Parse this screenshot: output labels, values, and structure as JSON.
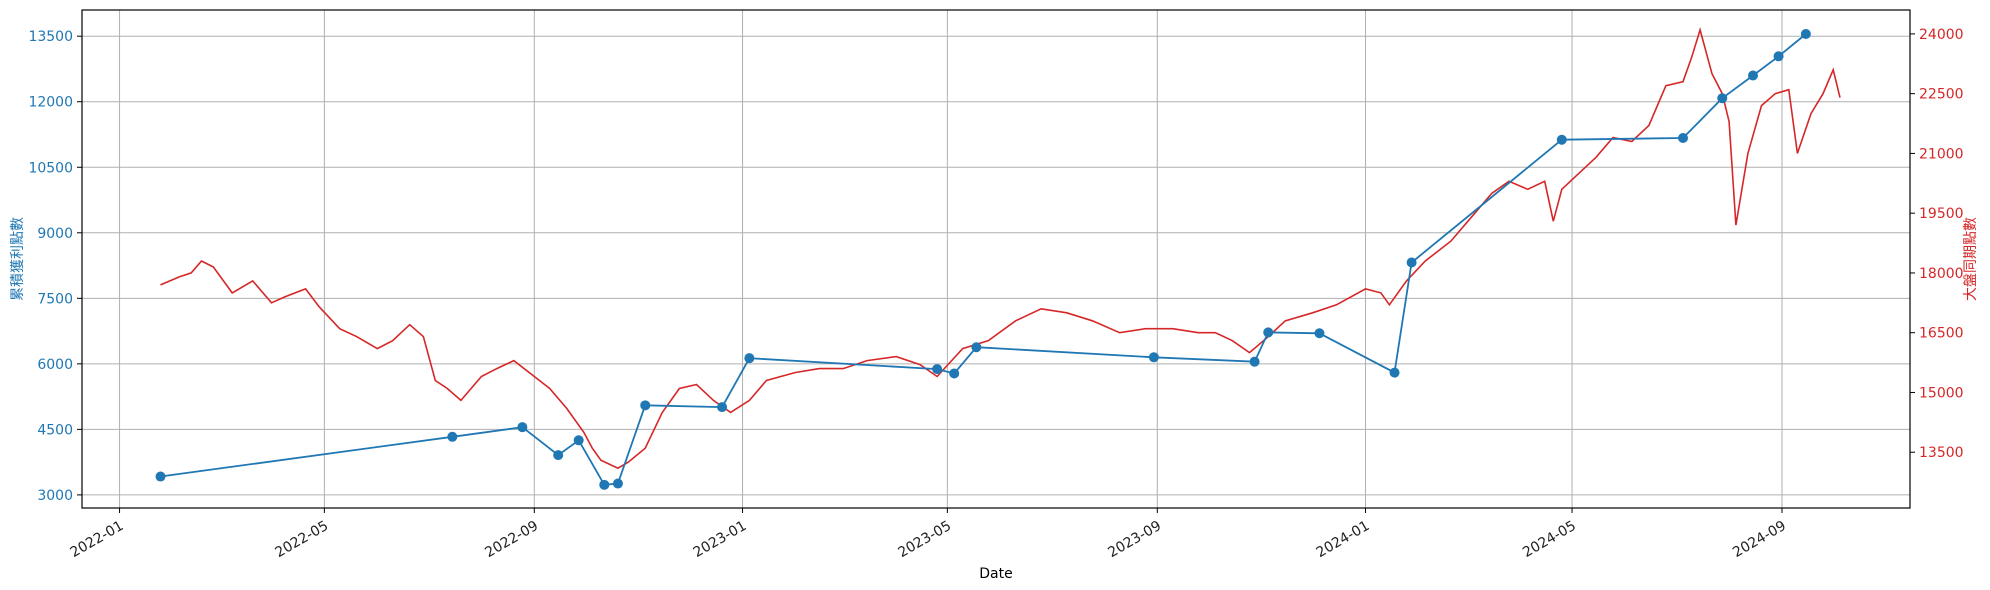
{
  "chart_data": {
    "type": "line",
    "xlabel": "Date",
    "ylabel_left": "累積獲利點數",
    "ylabel_right": "大盤同期點數",
    "y_left_lim": [
      2700,
      14100
    ],
    "y_right_lim": [
      12100,
      24600
    ],
    "x_lim": [
      "2021-12-10",
      "2024-11-15"
    ],
    "grid": true,
    "left_color": "#1f77b4",
    "right_color": "#d62728",
    "x_ticks": [
      "2022-01",
      "2022-05",
      "2022-09",
      "2023-01",
      "2023-05",
      "2023-09",
      "2024-01",
      "2024-05",
      "2024-09"
    ],
    "y_left_ticks": [
      3000,
      4500,
      6000,
      7500,
      9000,
      10500,
      12000,
      13500
    ],
    "y_right_ticks": [
      13500,
      15000,
      16500,
      18000,
      19500,
      21000,
      22500,
      24000
    ],
    "series": [
      {
        "axis": "left",
        "marker": "circle",
        "x": [
          "2022-01-25",
          "2022-07-15",
          "2022-08-25",
          "2022-09-15",
          "2022-09-27",
          "2022-10-12",
          "2022-10-20",
          "2022-11-05",
          "2022-12-20",
          "2023-01-05",
          "2023-04-25",
          "2023-05-05",
          "2023-05-18",
          "2023-08-30",
          "2023-10-28",
          "2023-11-05",
          "2023-12-05",
          "2024-01-18",
          "2024-01-28",
          "2024-04-25",
          "2024-07-05",
          "2024-07-28",
          "2024-08-15",
          "2024-08-30",
          "2024-09-15"
        ],
        "values": [
          3420,
          4330,
          4550,
          3910,
          4250,
          3230,
          3260,
          5050,
          5010,
          6130,
          5880,
          5780,
          6380,
          6150,
          6050,
          6720,
          6700,
          5800,
          8320,
          11130,
          11170,
          12080,
          12600,
          13040,
          13550
        ]
      },
      {
        "axis": "right",
        "marker": "none",
        "x": [
          "2022-01-25",
          "2022-02-05",
          "2022-02-12",
          "2022-02-18",
          "2022-02-25",
          "2022-03-08",
          "2022-03-20",
          "2022-03-31",
          "2022-04-08",
          "2022-04-20",
          "2022-04-28",
          "2022-05-10",
          "2022-05-20",
          "2022-06-01",
          "2022-06-10",
          "2022-06-20",
          "2022-06-28",
          "2022-07-05",
          "2022-07-12",
          "2022-07-20",
          "2022-08-01",
          "2022-08-10",
          "2022-08-20",
          "2022-09-01",
          "2022-09-10",
          "2022-09-20",
          "2022-09-30",
          "2022-10-05",
          "2022-10-10",
          "2022-10-20",
          "2022-10-26",
          "2022-11-05",
          "2022-11-15",
          "2022-11-25",
          "2022-12-05",
          "2022-12-15",
          "2022-12-25",
          "2023-01-05",
          "2023-01-15",
          "2023-02-01",
          "2023-02-15",
          "2023-03-01",
          "2023-03-15",
          "2023-04-01",
          "2023-04-15",
          "2023-04-25",
          "2023-05-10",
          "2023-05-25",
          "2023-06-10",
          "2023-06-25",
          "2023-07-10",
          "2023-07-25",
          "2023-08-10",
          "2023-08-25",
          "2023-09-10",
          "2023-09-25",
          "2023-10-05",
          "2023-10-15",
          "2023-10-25",
          "2023-11-05",
          "2023-11-15",
          "2023-12-01",
          "2023-12-15",
          "2024-01-01",
          "2024-01-10",
          "2024-01-15",
          "2024-01-25",
          "2024-02-05",
          "2024-02-20",
          "2024-03-05",
          "2024-03-15",
          "2024-03-25",
          "2024-04-05",
          "2024-04-15",
          "2024-04-20",
          "2024-04-25",
          "2024-05-05",
          "2024-05-15",
          "2024-05-25",
          "2024-06-05",
          "2024-06-15",
          "2024-06-25",
          "2024-07-05",
          "2024-07-10",
          "2024-07-15",
          "2024-07-22",
          "2024-07-28",
          "2024-08-01",
          "2024-08-05",
          "2024-08-12",
          "2024-08-20",
          "2024-08-28",
          "2024-09-05",
          "2024-09-10",
          "2024-09-18",
          "2024-09-25",
          "2024-10-01",
          "2024-10-05"
        ],
        "values": [
          17700,
          17900,
          18000,
          18300,
          18150,
          17500,
          17800,
          17250,
          17400,
          17600,
          17150,
          16600,
          16400,
          16100,
          16300,
          16700,
          16400,
          15300,
          15100,
          14800,
          15400,
          15600,
          15800,
          15400,
          15100,
          14600,
          14000,
          13600,
          13300,
          13100,
          13250,
          13600,
          14500,
          15100,
          15200,
          14800,
          14500,
          14800,
          15300,
          15500,
          15600,
          15600,
          15800,
          15900,
          15700,
          15400,
          16100,
          16300,
          16800,
          17100,
          17000,
          16800,
          16500,
          16600,
          16600,
          16500,
          16500,
          16300,
          16000,
          16400,
          16800,
          17000,
          17200,
          17600,
          17500,
          17200,
          17800,
          18300,
          18800,
          19500,
          20000,
          20300,
          20100,
          20300,
          19300,
          20100,
          20500,
          20900,
          21400,
          21300,
          21700,
          22700,
          22800,
          23400,
          24100,
          23000,
          22500,
          21800,
          19200,
          21000,
          22200,
          22500,
          22600,
          21000,
          22000,
          22500,
          23100,
          22400
        ]
      }
    ]
  }
}
